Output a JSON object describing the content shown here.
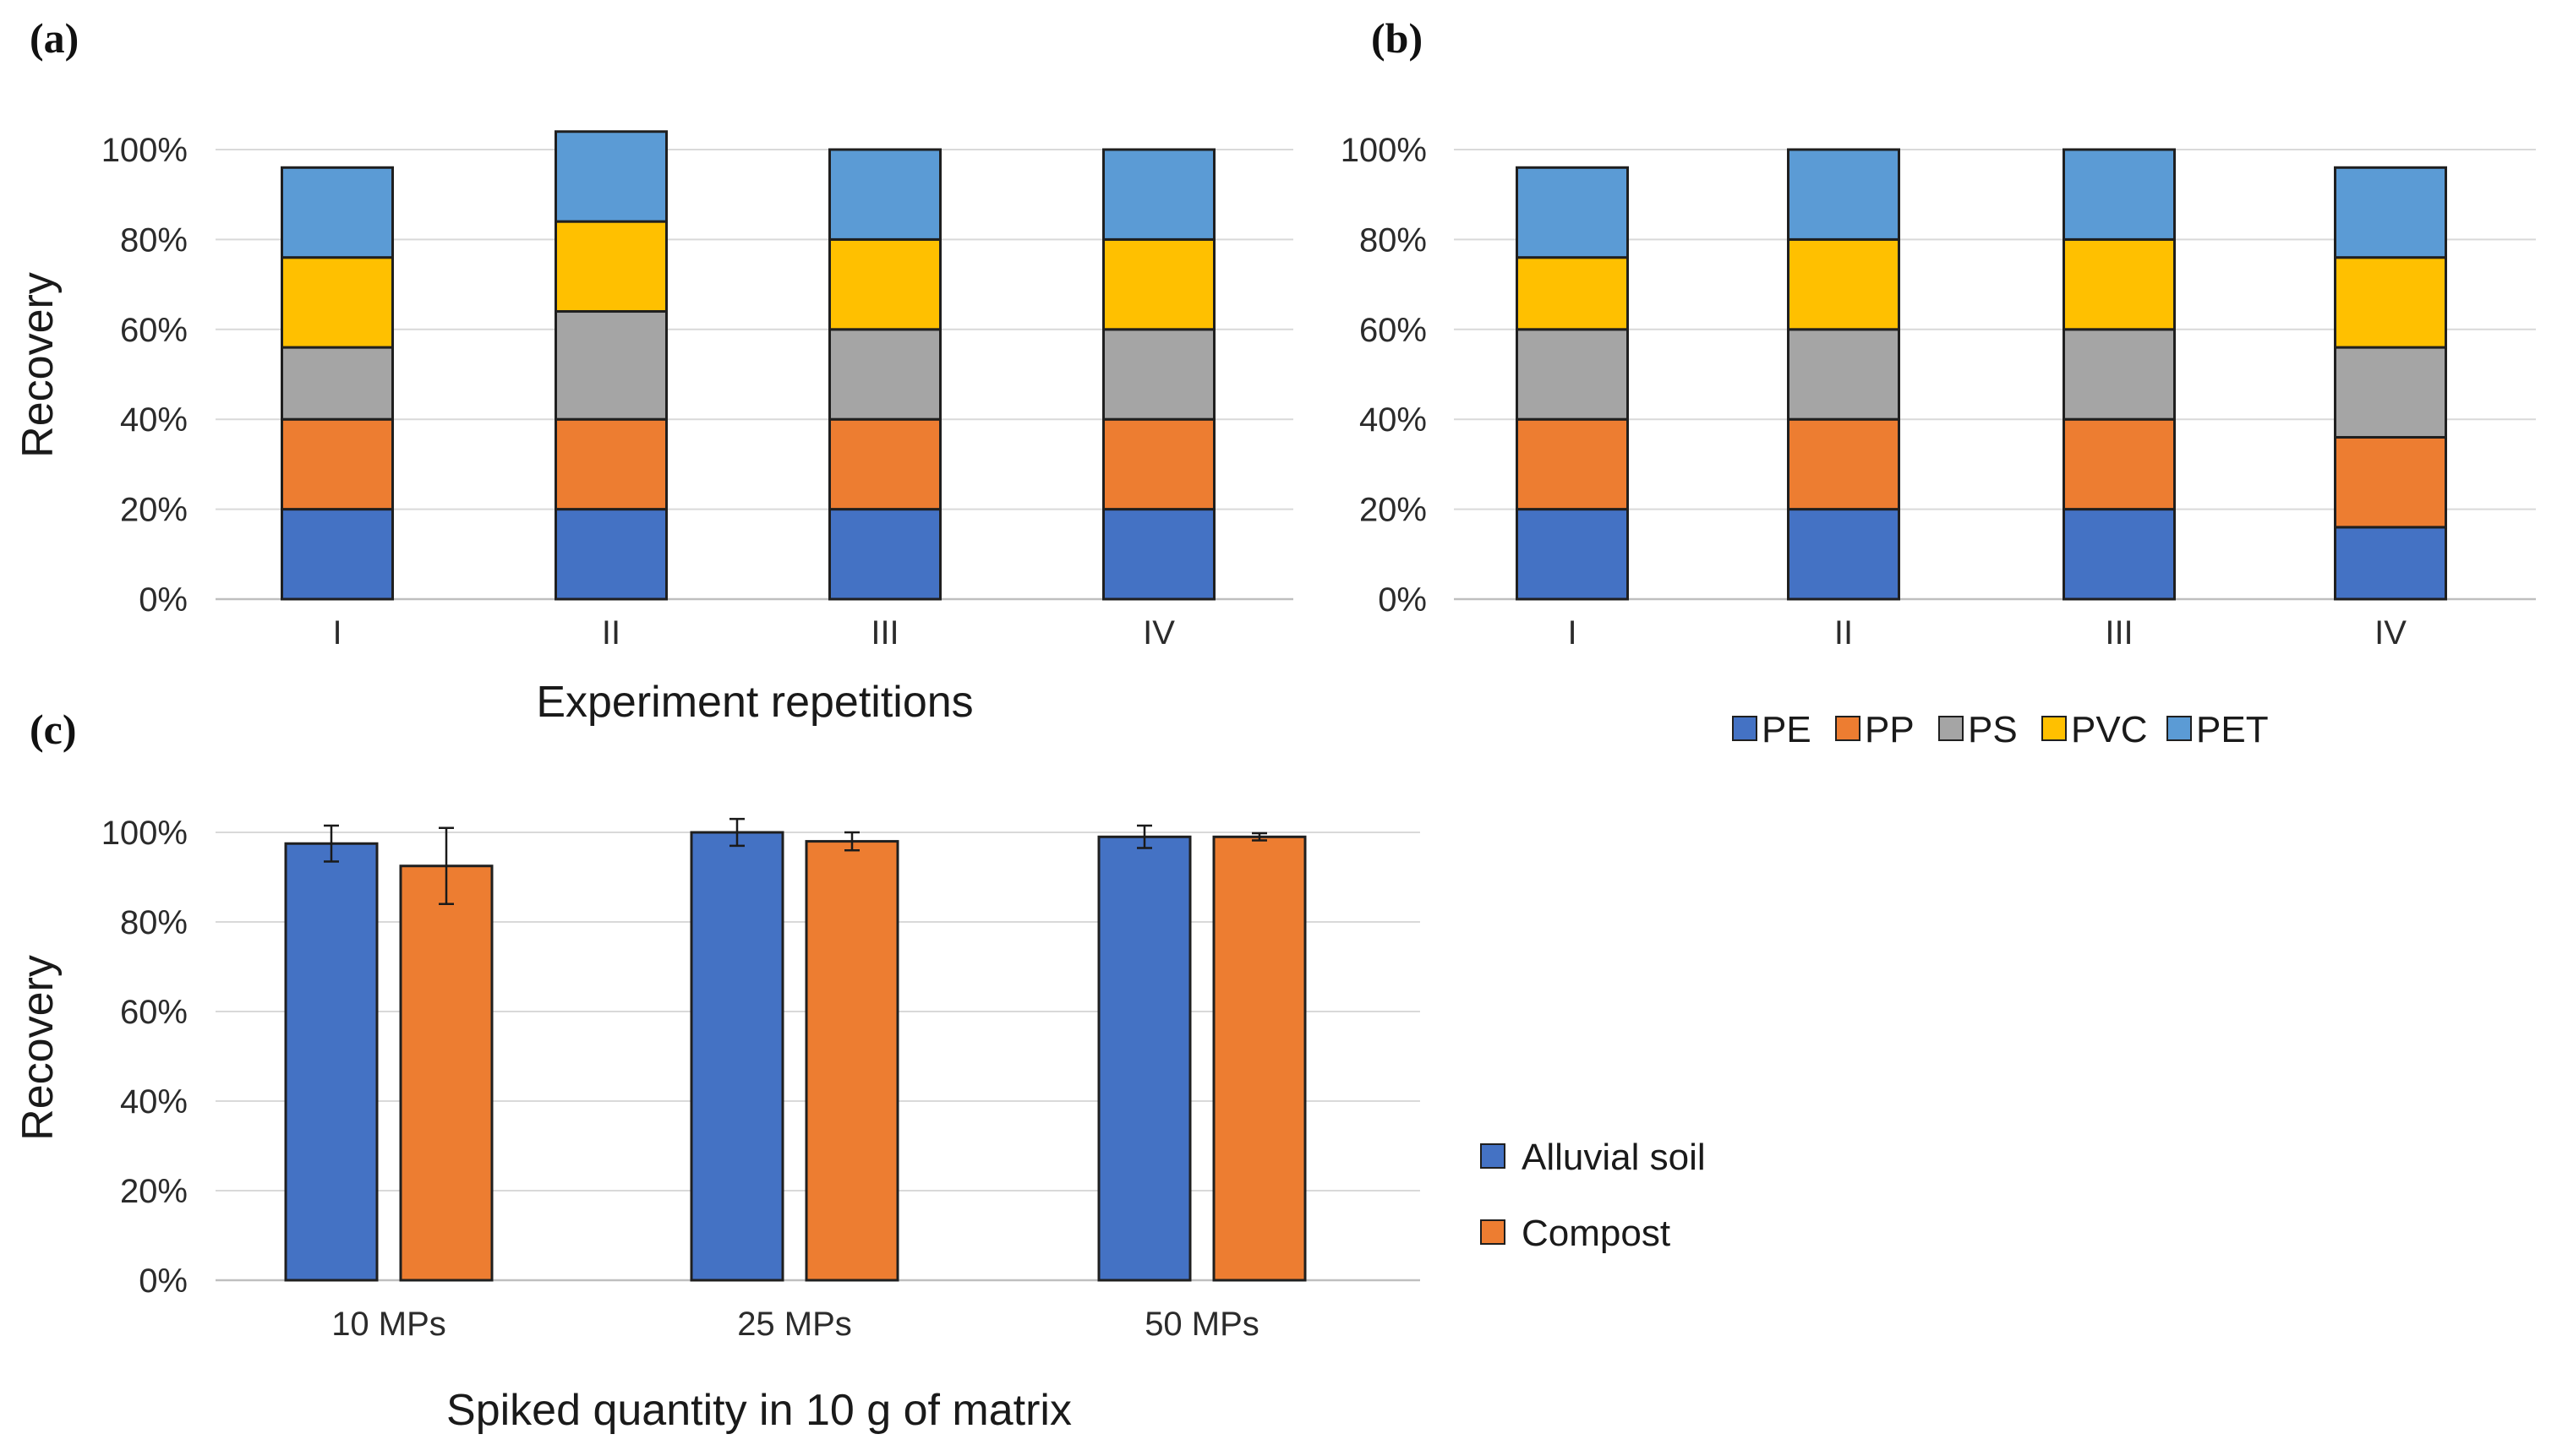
{
  "chart_data": [
    {
      "panel_label": "(a)",
      "type": "bar",
      "stacked": true,
      "categories": [
        "I",
        "II",
        "III",
        "IV"
      ],
      "series": [
        {
          "name": "PE",
          "color": "#4472c4",
          "values": [
            20,
            20,
            20,
            20
          ]
        },
        {
          "name": "PP",
          "color": "#ed7d31",
          "values": [
            20,
            20,
            20,
            20
          ]
        },
        {
          "name": "PS",
          "color": "#a5a5a5",
          "values": [
            16,
            24,
            20,
            20
          ]
        },
        {
          "name": "PVC",
          "color": "#ffc000",
          "values": [
            20,
            20,
            20,
            20
          ]
        },
        {
          "name": "PET",
          "color": "#5b9bd5",
          "values": [
            20,
            20,
            20,
            20
          ]
        }
      ],
      "ylabel": "Recovery",
      "xlabel": "Experiment repetitions",
      "ylim": [
        0,
        100
      ],
      "yticks": [
        "0%",
        "20%",
        "40%",
        "60%",
        "80%",
        "100%"
      ],
      "grid": true,
      "legend": "none"
    },
    {
      "panel_label": "(b)",
      "type": "bar",
      "stacked": true,
      "categories": [
        "I",
        "II",
        "III",
        "IV"
      ],
      "series": [
        {
          "name": "PE",
          "color": "#4472c4",
          "values": [
            20,
            20,
            20,
            16
          ]
        },
        {
          "name": "PP",
          "color": "#ed7d31",
          "values": [
            20,
            20,
            20,
            20
          ]
        },
        {
          "name": "PS",
          "color": "#a5a5a5",
          "values": [
            20,
            20,
            20,
            20
          ]
        },
        {
          "name": "PVC",
          "color": "#ffc000",
          "values": [
            16,
            20,
            20,
            20
          ]
        },
        {
          "name": "PET",
          "color": "#5b9bd5",
          "values": [
            20,
            20,
            20,
            20
          ]
        }
      ],
      "ylabel": "",
      "xlabel": "",
      "ylim": [
        0,
        100
      ],
      "yticks": [
        "0%",
        "20%",
        "40%",
        "60%",
        "80%",
        "100%"
      ],
      "grid": true,
      "legend": "bottom"
    },
    {
      "panel_label": "(c)",
      "type": "bar",
      "stacked": false,
      "categories": [
        "10 MPs",
        "25 MPs",
        "50 MPs"
      ],
      "series": [
        {
          "name": "Alluvial soil",
          "color": "#4472c4",
          "values": [
            97.5,
            100,
            99
          ],
          "errors": [
            4,
            3,
            2.5
          ]
        },
        {
          "name": "Compost",
          "color": "#ed7d31",
          "values": [
            92.5,
            98,
            99
          ],
          "errors": [
            8.5,
            2,
            0.8
          ]
        }
      ],
      "ylabel": "Recovery",
      "xlabel": "Spiked quantity in 10 g of matrix",
      "ylim": [
        0,
        100
      ],
      "yticks": [
        "0%",
        "20%",
        "40%",
        "60%",
        "80%",
        "100%"
      ],
      "grid": true,
      "legend": "right"
    }
  ]
}
